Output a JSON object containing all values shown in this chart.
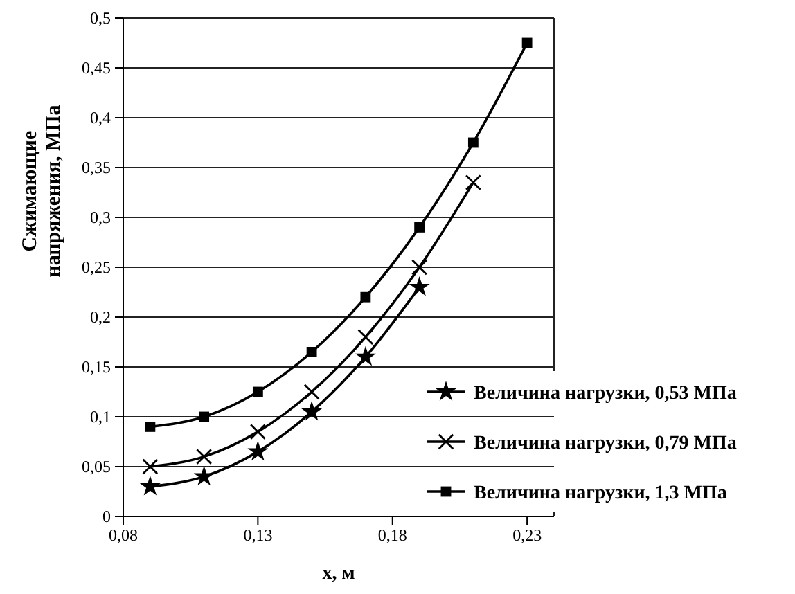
{
  "chart_data": {
    "type": "line",
    "xlabel": "x, м",
    "ylabel": "Сжимающие напряжения, МПа",
    "xlim": [
      0.08,
      0.24
    ],
    "xticks": [
      {
        "value": 0.08,
        "label": "0,08"
      },
      {
        "value": 0.13,
        "label": "0,13"
      },
      {
        "value": 0.18,
        "label": "0,18"
      },
      {
        "value": 0.23,
        "label": "0,23"
      }
    ],
    "ylim": [
      0,
      0.5
    ],
    "yticks": [
      0,
      {
        "value": 0.05,
        "label": "0,05"
      },
      {
        "value": 0.1,
        "label": "0,1"
      },
      {
        "value": 0.15,
        "label": "0,15"
      },
      {
        "value": 0.2,
        "label": "0,2"
      },
      {
        "value": 0.25,
        "label": "0,25"
      },
      {
        "value": 0.3,
        "label": "0,3"
      },
      {
        "value": 0.35,
        "label": "0,35"
      },
      {
        "value": 0.4,
        "label": "0,4"
      },
      {
        "value": 0.45,
        "label": "0,45"
      },
      {
        "value": 0.5,
        "label": "0,5"
      }
    ],
    "grid": "y",
    "legend": "right",
    "series": [
      {
        "name": "Величина нагрузки, 0,53 МПа",
        "color": "#000000",
        "marker": "star",
        "x": [
          0.09,
          0.11,
          0.13,
          0.15,
          0.17,
          0.19
        ],
        "values": [
          0.03,
          0.04,
          0.065,
          0.105,
          0.16,
          0.23
        ]
      },
      {
        "name": "Величина нагрузки, 0,79 МПа",
        "color": "#000000",
        "marker": "cross",
        "x": [
          0.09,
          0.11,
          0.13,
          0.15,
          0.17,
          0.19,
          0.21
        ],
        "values": [
          0.05,
          0.06,
          0.085,
          0.125,
          0.18,
          0.25,
          0.335
        ]
      },
      {
        "name": "Величина нагрузки, 1,3 МПа",
        "color": "#000000",
        "marker": "square",
        "x": [
          0.09,
          0.11,
          0.13,
          0.15,
          0.17,
          0.19,
          0.21,
          0.23
        ],
        "values": [
          0.09,
          0.1,
          0.125,
          0.165,
          0.22,
          0.29,
          0.375,
          0.475
        ]
      }
    ]
  }
}
